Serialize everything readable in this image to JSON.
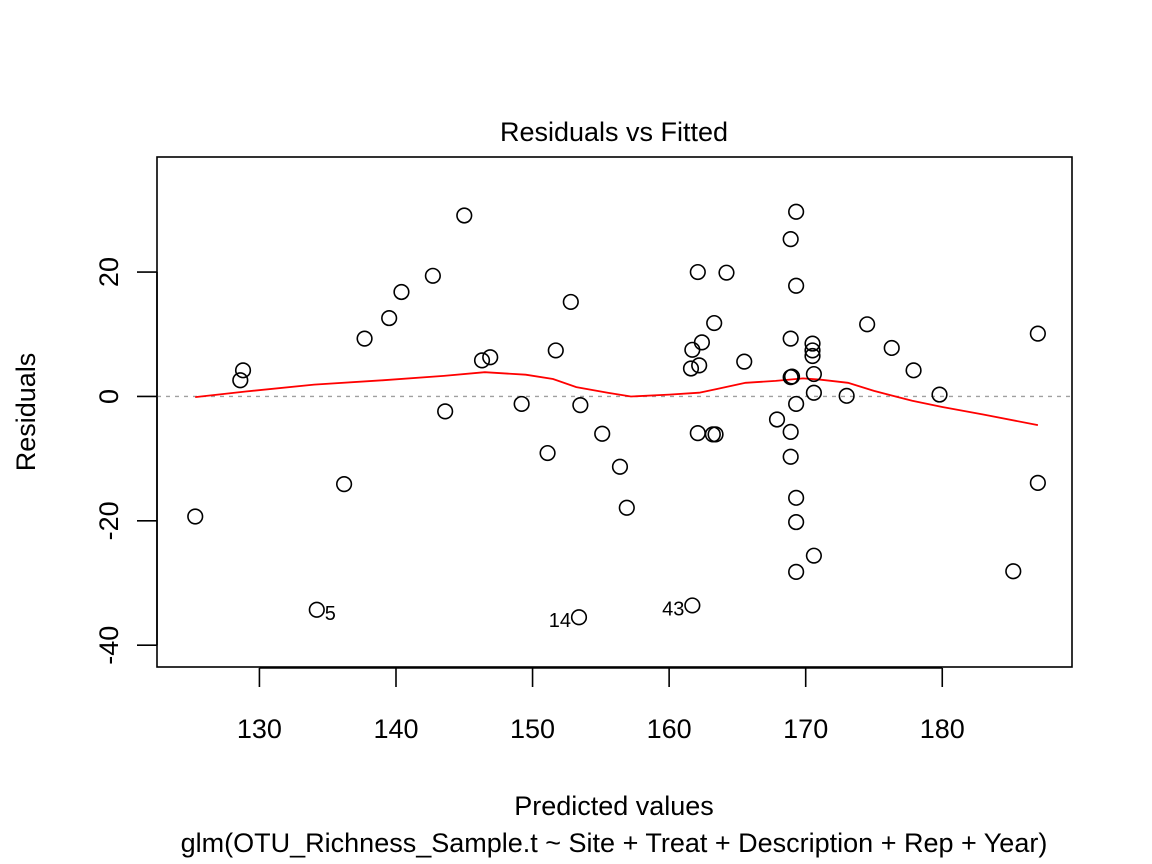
{
  "chart_data": {
    "type": "scatter",
    "title": "Residuals vs Fitted",
    "xlabel": "Predicted values",
    "subtitle": "glm(OTU_Richness_Sample.t ~ Site + Treat + Description + Rep + Year)",
    "ylabel": "Residuals",
    "xlim": [
      122.5,
      189.5
    ],
    "ylim": [
      -43.5,
      38.5
    ],
    "xticks": [
      130,
      140,
      150,
      160,
      170,
      180
    ],
    "yticks": [
      -40,
      -20,
      0,
      20
    ],
    "ytick_labels": [
      "-40",
      "-20",
      "0",
      "20"
    ],
    "reference_line_y": 0,
    "points": [
      {
        "x": 125.3,
        "y": -19.3
      },
      {
        "x": 128.6,
        "y": 2.6
      },
      {
        "x": 128.8,
        "y": 4.2
      },
      {
        "x": 134.2,
        "y": -34.3,
        "label": "5"
      },
      {
        "x": 136.2,
        "y": -14.1
      },
      {
        "x": 137.7,
        "y": 9.3
      },
      {
        "x": 139.5,
        "y": 12.6
      },
      {
        "x": 140.4,
        "y": 16.8
      },
      {
        "x": 142.7,
        "y": 19.4
      },
      {
        "x": 143.6,
        "y": -2.4
      },
      {
        "x": 145.0,
        "y": 29.1
      },
      {
        "x": 146.3,
        "y": 5.8
      },
      {
        "x": 146.9,
        "y": 6.3
      },
      {
        "x": 149.2,
        "y": -1.2
      },
      {
        "x": 151.1,
        "y": -9.1
      },
      {
        "x": 151.7,
        "y": 7.4
      },
      {
        "x": 152.8,
        "y": 15.2
      },
      {
        "x": 153.4,
        "y": -35.5,
        "label": "14"
      },
      {
        "x": 153.5,
        "y": -1.4
      },
      {
        "x": 155.1,
        "y": -6.0
      },
      {
        "x": 156.4,
        "y": -11.3
      },
      {
        "x": 156.9,
        "y": -17.9
      },
      {
        "x": 161.6,
        "y": 4.5
      },
      {
        "x": 161.7,
        "y": 7.5
      },
      {
        "x": 161.7,
        "y": -33.6,
        "label": "43"
      },
      {
        "x": 162.1,
        "y": 20.0
      },
      {
        "x": 162.1,
        "y": -5.9
      },
      {
        "x": 162.2,
        "y": 5.0
      },
      {
        "x": 162.4,
        "y": 8.7
      },
      {
        "x": 163.2,
        "y": -6.1
      },
      {
        "x": 163.3,
        "y": 11.8
      },
      {
        "x": 163.4,
        "y": -6.1
      },
      {
        "x": 164.2,
        "y": 19.9
      },
      {
        "x": 165.5,
        "y": 5.6
      },
      {
        "x": 167.9,
        "y": -3.7
      },
      {
        "x": 168.9,
        "y": 25.3
      },
      {
        "x": 168.9,
        "y": 9.3
      },
      {
        "x": 168.9,
        "y": 3.1
      },
      {
        "x": 169.0,
        "y": 3.2
      },
      {
        "x": 168.9,
        "y": -5.7
      },
      {
        "x": 168.9,
        "y": -9.7
      },
      {
        "x": 169.3,
        "y": 29.7
      },
      {
        "x": 169.3,
        "y": 17.8
      },
      {
        "x": 169.3,
        "y": -1.2
      },
      {
        "x": 169.3,
        "y": -16.3
      },
      {
        "x": 169.3,
        "y": -20.2
      },
      {
        "x": 169.3,
        "y": -28.2
      },
      {
        "x": 170.5,
        "y": 8.5
      },
      {
        "x": 170.5,
        "y": 7.4
      },
      {
        "x": 170.5,
        "y": 6.5
      },
      {
        "x": 170.6,
        "y": 3.6
      },
      {
        "x": 170.6,
        "y": 0.6
      },
      {
        "x": 170.6,
        "y": -25.6
      },
      {
        "x": 173.0,
        "y": 0.1
      },
      {
        "x": 174.5,
        "y": 11.6
      },
      {
        "x": 176.3,
        "y": 7.8
      },
      {
        "x": 177.9,
        "y": 4.2
      },
      {
        "x": 179.8,
        "y": 0.3
      },
      {
        "x": 185.2,
        "y": -28.1
      },
      {
        "x": 187.0,
        "y": 10.1
      },
      {
        "x": 187.0,
        "y": -13.9
      }
    ],
    "smooth_line": {
      "color": "#ff0000",
      "x": [
        125.3,
        129,
        134,
        139,
        143.5,
        146.5,
        149.5,
        151.5,
        153.2,
        155.5,
        157.2,
        160,
        162.2,
        163.5,
        165.6,
        167.8,
        169.8,
        171.1,
        173.1,
        175,
        177.8,
        180,
        183,
        187
      ],
      "y": [
        -0.1,
        0.8,
        1.9,
        2.6,
        3.3,
        3.9,
        3.5,
        2.8,
        1.5,
        0.6,
        0.0,
        0.3,
        0.6,
        1.2,
        2.2,
        2.5,
        2.9,
        2.7,
        2.2,
        0.9,
        -0.7,
        -1.7,
        -2.9,
        -4.6
      ]
    }
  }
}
